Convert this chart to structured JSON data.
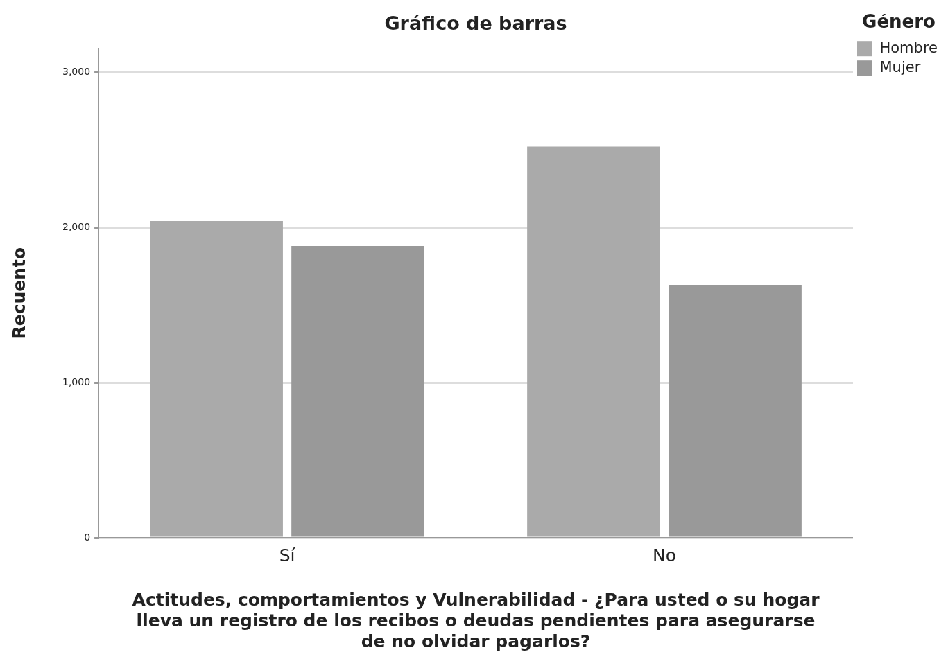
{
  "chart_data": {
    "type": "bar",
    "title": "Gráfico de barras",
    "xlabel": "Actitudes, comportamientos y Vulnerabilidad - ¿Para usted o su hogar lleva un registro de los recibos o deudas pendientes para asegurarse de no olvidar pagarlos?",
    "ylabel": "Recuento",
    "legend_title": "Género",
    "categories": [
      "Sí",
      "No"
    ],
    "series": [
      {
        "name": "Hombre",
        "color": "#aaaaaa",
        "values": [
          2040,
          2520
        ]
      },
      {
        "name": "Mujer",
        "color": "#999999",
        "values": [
          1880,
          1630
        ]
      }
    ],
    "ylim": [
      0,
      3150
    ],
    "yticks": [
      {
        "value": 0,
        "label": "0"
      },
      {
        "value": 1000,
        "label": "1,000"
      },
      {
        "value": 2000,
        "label": "2,000"
      },
      {
        "value": 3000,
        "label": "3,000"
      }
    ],
    "grid": "y",
    "legend": "top right"
  }
}
